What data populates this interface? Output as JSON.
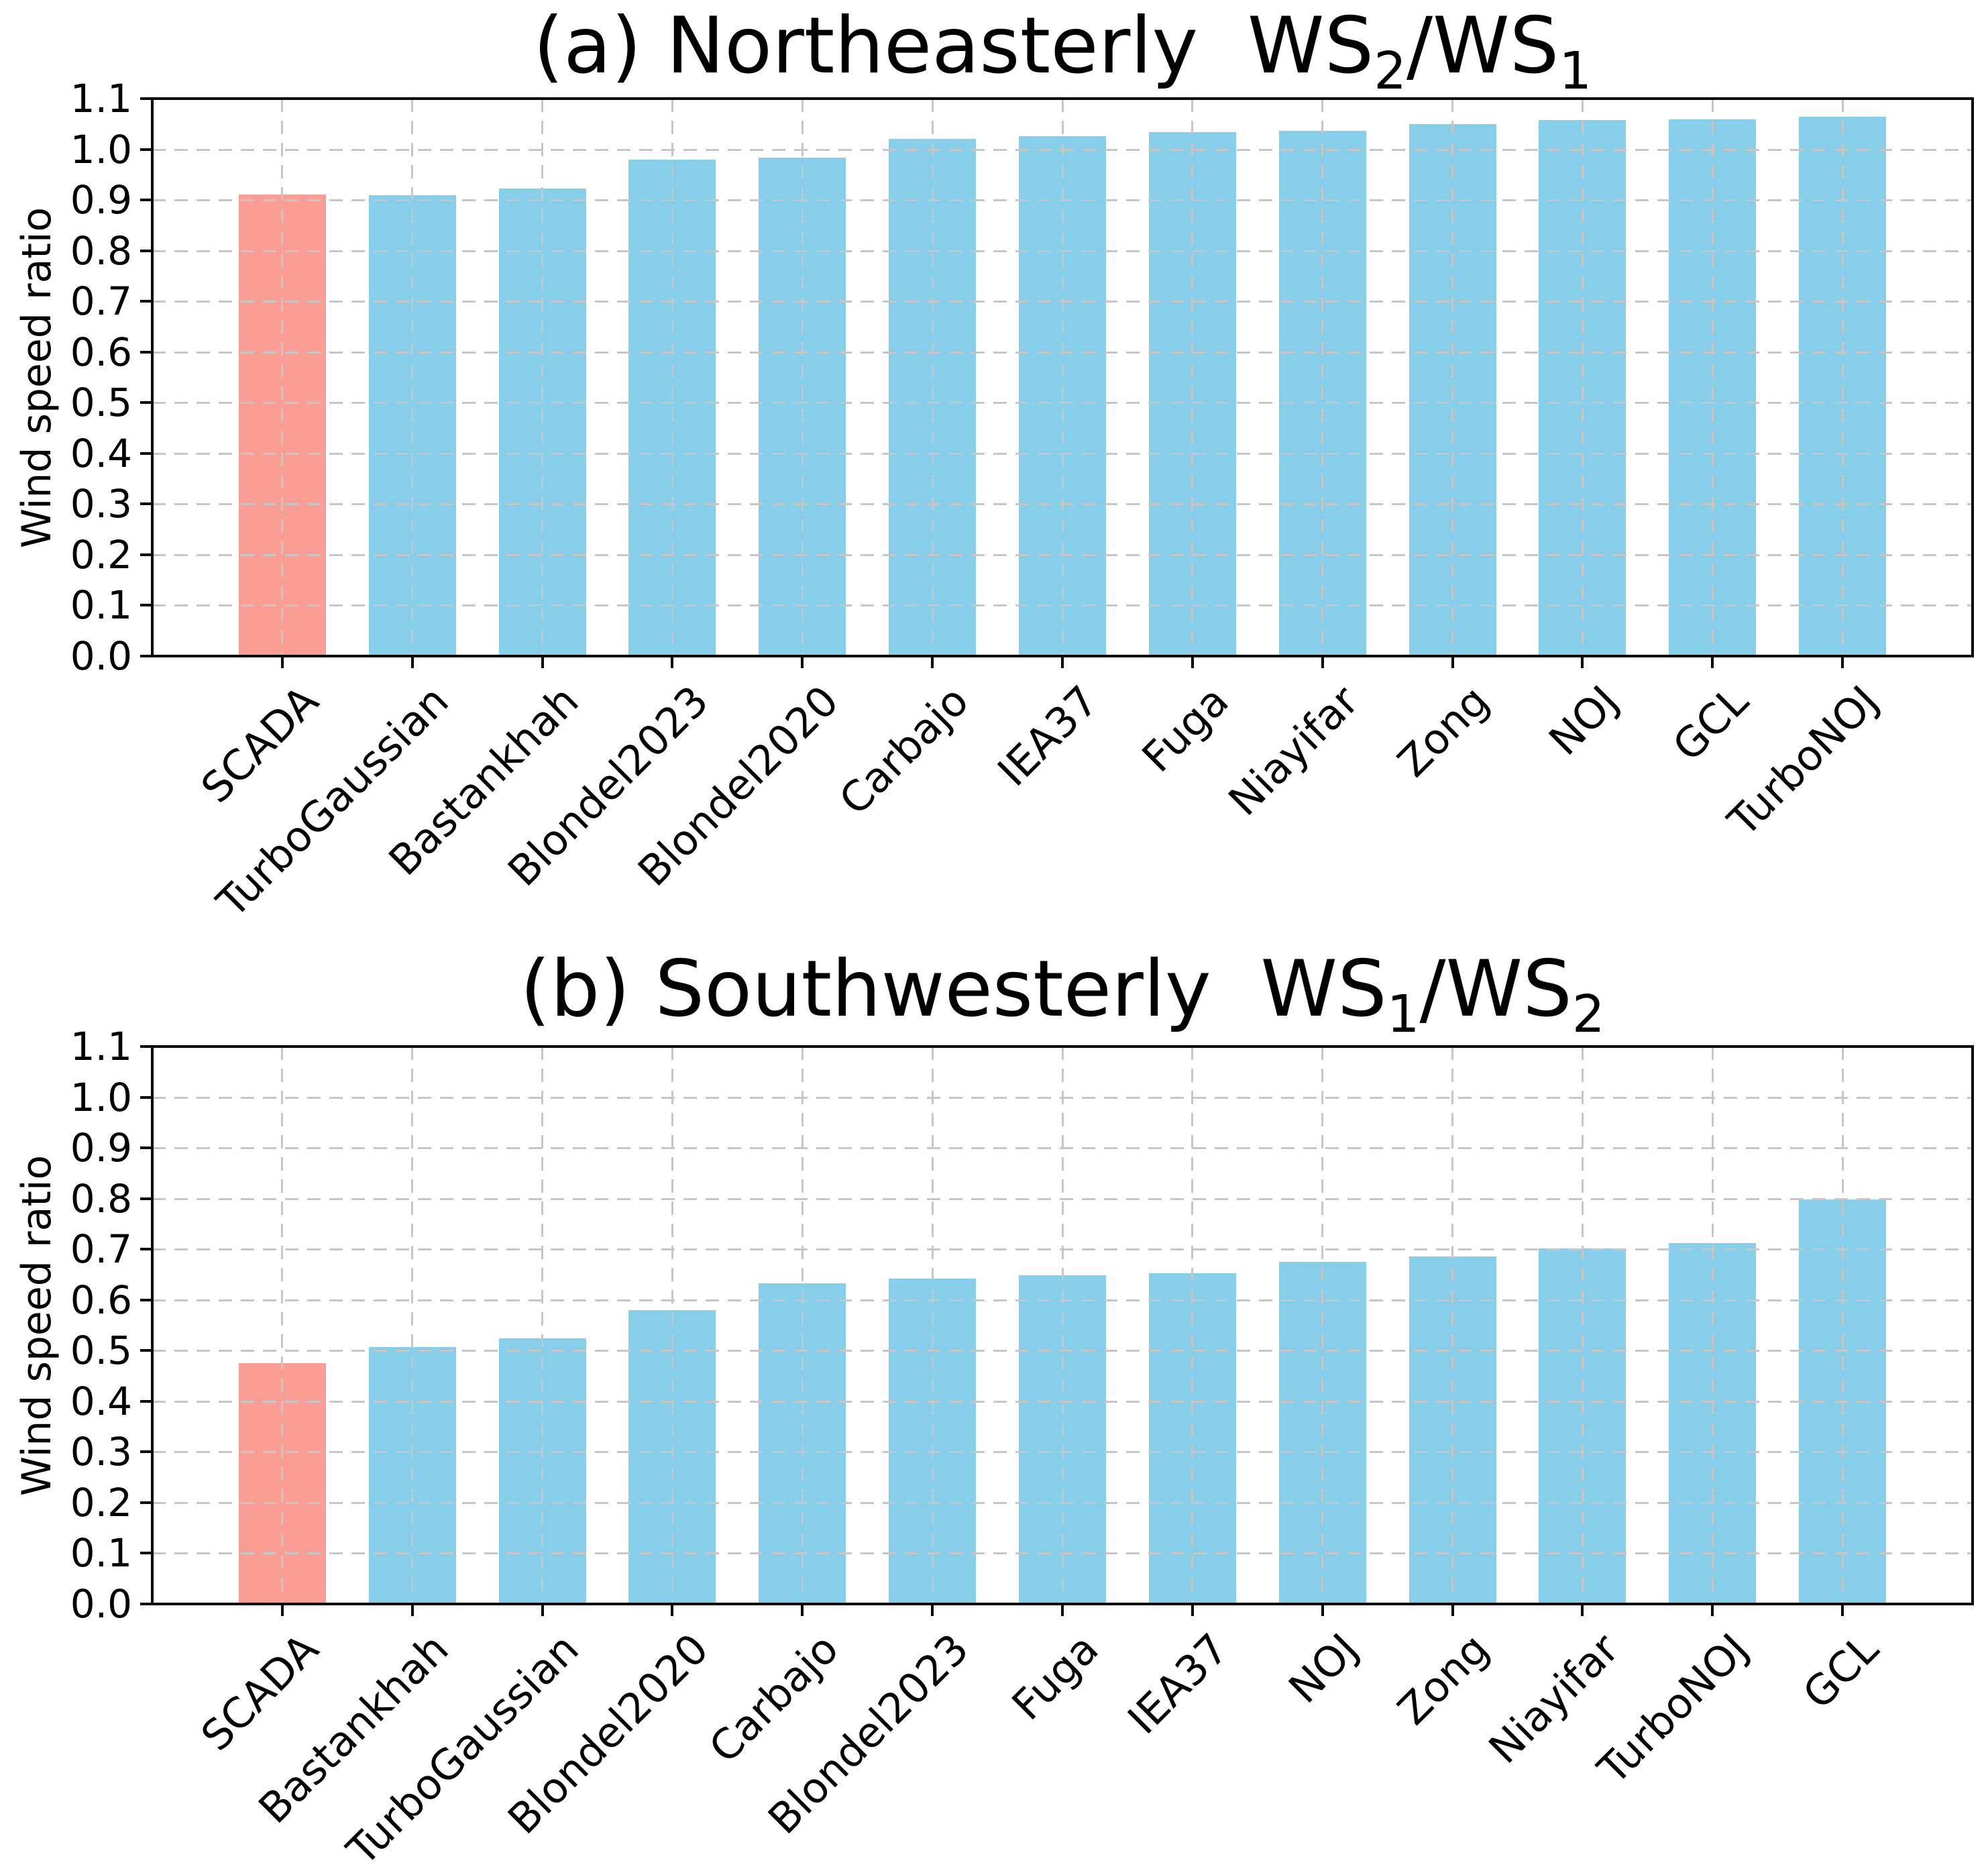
{
  "style": {
    "bar_default_color": "#87CEEB",
    "bar_highlight_color": "#FA9E95",
    "grid_color": "#C6C6C6",
    "axis_color": "#000000",
    "text_color": "#000000",
    "background_color": "#FFFFFF"
  },
  "chart_data": [
    {
      "type": "bar",
      "panel": "a",
      "title_text": "(a) Northeasterly  WS₂/WS₁",
      "title_parts": [
        {
          "text": "(a) Northeasterly  WS",
          "sub": false
        },
        {
          "text": "2",
          "sub": true
        },
        {
          "text": "/WS",
          "sub": false
        },
        {
          "text": "1",
          "sub": true
        }
      ],
      "ylabel": "Wind speed ratio",
      "ylim": [
        0.0,
        1.1
      ],
      "ytick_step": 0.1,
      "grid": true,
      "legend": "none",
      "highlight_category": "SCADA",
      "categories": [
        "SCADA",
        "TurboGaussian",
        "Bastankhah",
        "Blondel2023",
        "Blondel2020",
        "Carbajo",
        "IEA37",
        "Fuga",
        "Niayifar",
        "Zong",
        "NOJ",
        "GCL",
        "TurboNOJ"
      ],
      "values": [
        0.911,
        0.909,
        0.922,
        0.979,
        0.983,
        1.02,
        1.026,
        1.034,
        1.036,
        1.05,
        1.057,
        1.059,
        1.064
      ]
    },
    {
      "type": "bar",
      "panel": "b",
      "title_text": "(b) Southwesterly  WS₁/WS₂",
      "title_parts": [
        {
          "text": "(b) Southwesterly  WS",
          "sub": false
        },
        {
          "text": "1",
          "sub": true
        },
        {
          "text": "/WS",
          "sub": false
        },
        {
          "text": "2",
          "sub": true
        }
      ],
      "ylabel": "Wind speed ratio",
      "ylim": [
        0.0,
        1.1
      ],
      "ytick_step": 0.1,
      "grid": true,
      "legend": "none",
      "highlight_category": "SCADA",
      "categories": [
        "SCADA",
        "Bastankhah",
        "TurboGaussian",
        "Blondel2020",
        "Carbajo",
        "Blondel2023",
        "Fuga",
        "IEA37",
        "NOJ",
        "Zong",
        "Niayifar",
        "TurboNOJ",
        "GCL"
      ],
      "values": [
        0.475,
        0.507,
        0.524,
        0.58,
        0.633,
        0.642,
        0.649,
        0.653,
        0.675,
        0.686,
        0.702,
        0.712,
        0.798
      ]
    }
  ]
}
